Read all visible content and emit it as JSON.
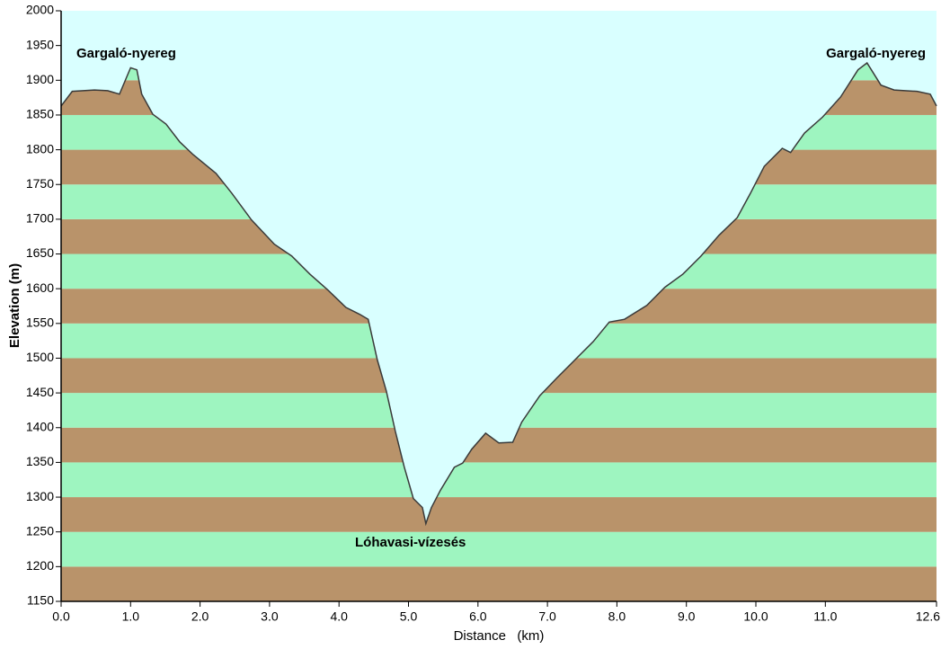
{
  "chart_data": {
    "type": "area",
    "xlabel": "Distance   (km)",
    "ylabel": "Elevation (m)",
    "annotations": [
      "Gargaló-nyereg",
      "Gargaló-nyereg",
      "Lóhavasi-vízesés"
    ],
    "x": [
      0,
      0.16,
      0.48,
      0.67,
      0.84,
      1.0,
      1.09,
      1.16,
      1.32,
      1.51,
      1.71,
      1.9,
      2.23,
      2.46,
      2.74,
      3.07,
      3.32,
      3.58,
      3.84,
      4.1,
      4.3,
      4.42,
      4.55,
      4.68,
      4.81,
      4.94,
      5.07,
      5.2,
      5.25,
      5.33,
      5.46,
      5.66,
      5.78,
      5.91,
      6.11,
      6.3,
      6.5,
      6.63,
      6.89,
      7.14,
      7.4,
      7.66,
      7.89,
      8.11,
      8.43,
      8.69,
      8.95,
      9.21,
      9.47,
      9.73,
      9.92,
      10.12,
      10.38,
      10.5,
      10.7,
      10.96,
      11.22,
      11.47,
      11.6,
      11.8,
      11.99,
      12.32,
      12.51,
      12.6
    ],
    "values": [
      1863,
      1884,
      1886,
      1885,
      1880,
      1918,
      1915,
      1880,
      1851,
      1837,
      1811,
      1793,
      1766,
      1737,
      1699,
      1664,
      1647,
      1621,
      1598,
      1573,
      1563,
      1556,
      1498,
      1453,
      1395,
      1343,
      1298,
      1285,
      1262,
      1285,
      1310,
      1343,
      1349,
      1369,
      1392,
      1378,
      1379,
      1408,
      1446,
      1472,
      1498,
      1524,
      1552,
      1556,
      1576,
      1602,
      1621,
      1647,
      1677,
      1702,
      1737,
      1776,
      1802,
      1796,
      1824,
      1847,
      1876,
      1915,
      1925,
      1893,
      1886,
      1884,
      1880,
      1863
    ],
    "color": "#3a3a3a",
    "sky_color": "#d9ffff",
    "band_colors": [
      "#b9936a",
      "#9ef5c0"
    ],
    "xlim": [
      0,
      12.6
    ],
    "ylim": [
      1150,
      2000
    ],
    "xticks": [
      {
        "value": 0,
        "label": "0.0"
      },
      {
        "value": 1,
        "label": "1.0"
      },
      {
        "value": 2,
        "label": "2.0"
      },
      {
        "value": 3,
        "label": "3.0"
      },
      {
        "value": 4,
        "label": "4.0"
      },
      {
        "value": 5,
        "label": "5.0"
      },
      {
        "value": 6,
        "label": "6.0"
      },
      {
        "value": 7,
        "label": "7.0"
      },
      {
        "value": 8,
        "label": "8.0"
      },
      {
        "value": 9,
        "label": "9.0"
      },
      {
        "value": 10,
        "label": "10.0"
      },
      {
        "value": 11,
        "label": "11.0"
      },
      {
        "value": 12.6,
        "label": "12.6"
      }
    ],
    "yticks": [
      1150,
      1200,
      1250,
      1300,
      1350,
      1400,
      1450,
      1500,
      1550,
      1600,
      1650,
      1700,
      1750,
      1800,
      1850,
      1900,
      1950,
      2000
    ]
  }
}
